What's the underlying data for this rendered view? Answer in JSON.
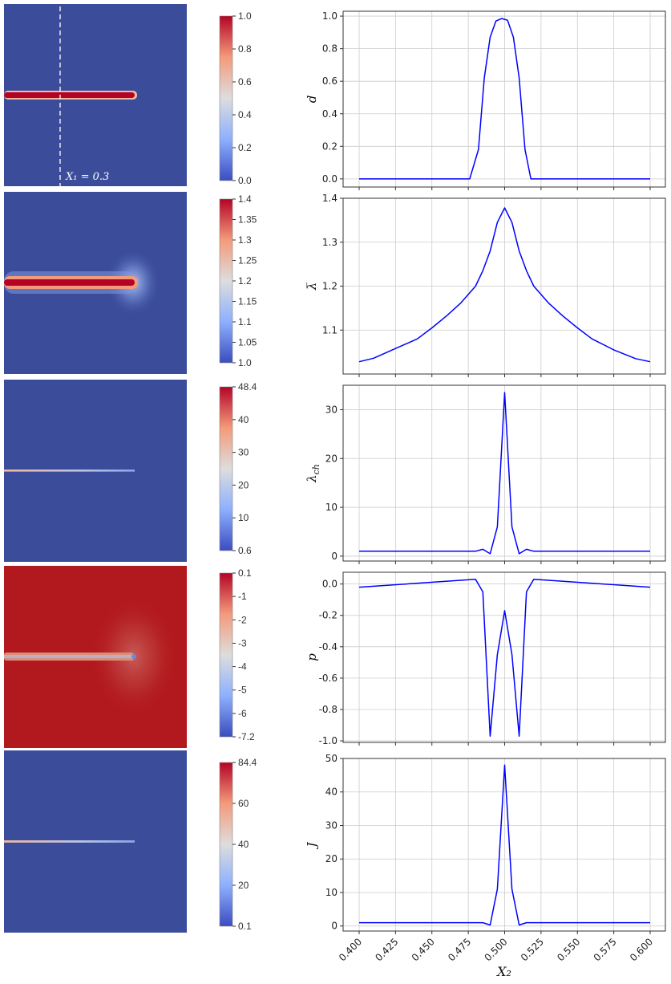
{
  "colors": {
    "field_background": "#3b4c9b",
    "pressure_background": "#b2191e",
    "line": "#0000ff",
    "grid": "#cccccc",
    "crack_hot": "#b40426",
    "crack_glow": "#f4987a"
  },
  "annotation": {
    "text": "X₁ = 0.3"
  },
  "colorbars": [
    {
      "name": "d",
      "ticks": [
        "1.0",
        "0.8",
        "0.6",
        "0.4",
        "0.2",
        "0.0"
      ]
    },
    {
      "name": "lambda-bar",
      "ticks": [
        "1.4",
        "1.35",
        "1.3",
        "1.25",
        "1.2",
        "1.15",
        "1.1",
        "1.05",
        "1.0"
      ]
    },
    {
      "name": "lambda-ch",
      "ticks": [
        "48.4",
        "40",
        "30",
        "20",
        "10",
        "0.6"
      ]
    },
    {
      "name": "p",
      "ticks": [
        "0.1",
        "-1",
        "-2",
        "-3",
        "-4",
        "-5",
        "-6",
        "-7.2"
      ]
    },
    {
      "name": "J",
      "ticks": [
        "84.4",
        "60",
        "40",
        "20",
        "0.1"
      ]
    }
  ],
  "chart_data": [
    {
      "type": "line",
      "ylabel": "d",
      "xlim": [
        0.4,
        0.6
      ],
      "ylim": [
        -0.05,
        1.03
      ],
      "yticks": [
        0.0,
        0.2,
        0.4,
        0.6,
        0.8,
        1.0
      ],
      "ytick_labels": [
        "0.0",
        "0.2",
        "0.4",
        "0.6",
        "0.8",
        "1.0"
      ],
      "grid": true,
      "x": [
        0.4,
        0.476,
        0.482,
        0.486,
        0.49,
        0.494,
        0.498,
        0.5,
        0.502,
        0.506,
        0.51,
        0.514,
        0.518,
        0.524,
        0.6
      ],
      "y": [
        0.0,
        0.0,
        0.18,
        0.62,
        0.87,
        0.97,
        0.985,
        0.98,
        0.975,
        0.87,
        0.62,
        0.18,
        0.0,
        0.0,
        0.0
      ]
    },
    {
      "type": "line",
      "ylabel": "λ̅",
      "xlim": [
        0.4,
        0.6
      ],
      "ylim": [
        1.0,
        1.4
      ],
      "yticks": [
        1.1,
        1.2,
        1.3,
        1.4
      ],
      "ytick_labels": [
        "1.1",
        "1.2",
        "1.3",
        "1.4"
      ],
      "grid": true,
      "x": [
        0.4,
        0.41,
        0.425,
        0.44,
        0.45,
        0.46,
        0.47,
        0.48,
        0.485,
        0.49,
        0.495,
        0.5,
        0.505,
        0.51,
        0.515,
        0.52,
        0.53,
        0.54,
        0.55,
        0.56,
        0.575,
        0.59,
        0.6
      ],
      "y": [
        1.028,
        1.036,
        1.058,
        1.08,
        1.105,
        1.132,
        1.162,
        1.2,
        1.235,
        1.28,
        1.345,
        1.378,
        1.345,
        1.28,
        1.235,
        1.2,
        1.162,
        1.132,
        1.105,
        1.08,
        1.055,
        1.035,
        1.028
      ]
    },
    {
      "type": "line",
      "ylabel": "λ_ch",
      "xlim": [
        0.4,
        0.6
      ],
      "ylim": [
        -1,
        35
      ],
      "yticks": [
        0,
        10,
        20,
        30
      ],
      "ytick_labels": [
        "0",
        "10",
        "20",
        "30"
      ],
      "grid": true,
      "x": [
        0.4,
        0.48,
        0.485,
        0.49,
        0.495,
        0.5,
        0.505,
        0.51,
        0.515,
        0.52,
        0.6
      ],
      "y": [
        1.0,
        1.0,
        1.4,
        0.5,
        6.0,
        33.5,
        6.0,
        0.5,
        1.4,
        1.0,
        1.0
      ]
    },
    {
      "type": "line",
      "ylabel": "p",
      "xlim": [
        0.4,
        0.6
      ],
      "ylim": [
        -1.01,
        0.075
      ],
      "yticks": [
        -1.0,
        -0.8,
        -0.6,
        -0.4,
        -0.2,
        0.0
      ],
      "ytick_labels": [
        "-1.0",
        "-0.8",
        "-0.6",
        "-0.4",
        "-0.2",
        "0.0"
      ],
      "grid": true,
      "x": [
        0.4,
        0.48,
        0.485,
        0.49,
        0.495,
        0.5,
        0.505,
        0.51,
        0.515,
        0.52,
        0.6
      ],
      "y": [
        -0.02,
        0.03,
        -0.05,
        -0.97,
        -0.45,
        -0.17,
        -0.45,
        -0.97,
        -0.05,
        0.03,
        -0.02
      ]
    },
    {
      "type": "line",
      "ylabel": "J",
      "xlabel": "X₂",
      "xlim": [
        0.4,
        0.6
      ],
      "ylim": [
        -1.5,
        50
      ],
      "yticks": [
        0,
        10,
        20,
        30,
        40,
        50
      ],
      "ytick_labels": [
        "0",
        "10",
        "20",
        "30",
        "40",
        "50"
      ],
      "xticks": [
        0.4,
        0.425,
        0.45,
        0.475,
        0.5,
        0.525,
        0.55,
        0.575,
        0.6
      ],
      "xtick_labels": [
        "0.400",
        "0.425",
        "0.450",
        "0.475",
        "0.500",
        "0.525",
        "0.550",
        "0.575",
        "0.600"
      ],
      "grid": true,
      "x": [
        0.4,
        0.48,
        0.485,
        0.49,
        0.495,
        0.5,
        0.505,
        0.51,
        0.515,
        0.52,
        0.6
      ],
      "y": [
        1.0,
        1.0,
        1.0,
        0.3,
        11.0,
        48.0,
        11.0,
        0.3,
        1.0,
        1.0,
        1.0
      ]
    }
  ]
}
